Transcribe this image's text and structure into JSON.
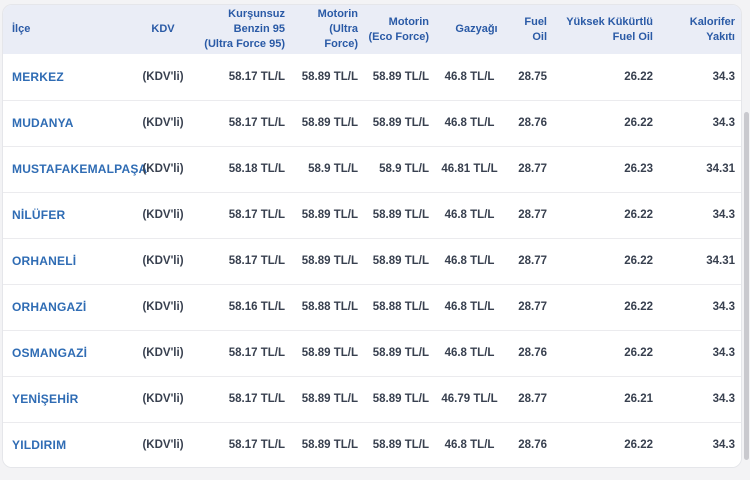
{
  "theme": {
    "page_background": "#f3f3f5",
    "card_background": "#ffffff",
    "header_background": "#eaedf6",
    "header_text_color": "#2a5aa6",
    "district_text_color": "#2f6cb4",
    "value_text_color": "#38404f",
    "row_divider_color": "#ebebee",
    "scrollbar_color": "#c9c9ce"
  },
  "chart_data": {
    "type": "table",
    "title": "",
    "columns": [
      {
        "key": "ilce",
        "label": "İlçe",
        "align": "left"
      },
      {
        "key": "kdv",
        "label": "KDV",
        "align": "center"
      },
      {
        "key": "benzin95",
        "label": "Kurşunsuz\nBenzin 95\n(Ultra Force 95)",
        "align": "right"
      },
      {
        "key": "motorin_ultra",
        "label": "Motorin\n(Ultra\nForce)",
        "align": "right"
      },
      {
        "key": "motorin_eco",
        "label": "Motorin\n(Eco Force)",
        "align": "right"
      },
      {
        "key": "gazyagi",
        "label": "Gazyağı",
        "align": "center"
      },
      {
        "key": "fuel_oil",
        "label": "Fuel\nOil",
        "align": "right"
      },
      {
        "key": "yuksek_fuel_oil",
        "label": "Yüksek Kükürtlü\nFuel Oil",
        "align": "right"
      },
      {
        "key": "kalorifer",
        "label": "Kalorifer\nYakıtı",
        "align": "right"
      }
    ],
    "rows": [
      {
        "ilce": "MERKEZ",
        "kdv": "(KDV'li)",
        "benzin95": "58.17 TL/L",
        "motorin_ultra": "58.89 TL/L",
        "motorin_eco": "58.89 TL/L",
        "gazyagi": "46.8 TL/L",
        "fuel_oil": "28.75",
        "yuksek_fuel_oil": "26.22",
        "kalorifer": "34.3"
      },
      {
        "ilce": "MUDANYA",
        "kdv": "(KDV'li)",
        "benzin95": "58.17 TL/L",
        "motorin_ultra": "58.89 TL/L",
        "motorin_eco": "58.89 TL/L",
        "gazyagi": "46.8 TL/L",
        "fuel_oil": "28.76",
        "yuksek_fuel_oil": "26.22",
        "kalorifer": "34.3"
      },
      {
        "ilce": "MUSTAFAKEMALPAŞA",
        "kdv": "(KDV'li)",
        "benzin95": "58.18 TL/L",
        "motorin_ultra": "58.9 TL/L",
        "motorin_eco": "58.9 TL/L",
        "gazyagi": "46.81 TL/L",
        "fuel_oil": "28.77",
        "yuksek_fuel_oil": "26.23",
        "kalorifer": "34.31"
      },
      {
        "ilce": "NİLÜFER",
        "kdv": "(KDV'li)",
        "benzin95": "58.17 TL/L",
        "motorin_ultra": "58.89 TL/L",
        "motorin_eco": "58.89 TL/L",
        "gazyagi": "46.8 TL/L",
        "fuel_oil": "28.77",
        "yuksek_fuel_oil": "26.22",
        "kalorifer": "34.3"
      },
      {
        "ilce": "ORHANELİ",
        "kdv": "(KDV'li)",
        "benzin95": "58.17 TL/L",
        "motorin_ultra": "58.89 TL/L",
        "motorin_eco": "58.89 TL/L",
        "gazyagi": "46.8 TL/L",
        "fuel_oil": "28.77",
        "yuksek_fuel_oil": "26.22",
        "kalorifer": "34.31"
      },
      {
        "ilce": "ORHANGAZİ",
        "kdv": "(KDV'li)",
        "benzin95": "58.16 TL/L",
        "motorin_ultra": "58.88 TL/L",
        "motorin_eco": "58.88 TL/L",
        "gazyagi": "46.8 TL/L",
        "fuel_oil": "28.77",
        "yuksek_fuel_oil": "26.22",
        "kalorifer": "34.3"
      },
      {
        "ilce": "OSMANGAZİ",
        "kdv": "(KDV'li)",
        "benzin95": "58.17 TL/L",
        "motorin_ultra": "58.89 TL/L",
        "motorin_eco": "58.89 TL/L",
        "gazyagi": "46.8 TL/L",
        "fuel_oil": "28.76",
        "yuksek_fuel_oil": "26.22",
        "kalorifer": "34.3"
      },
      {
        "ilce": "YENİŞEHİR",
        "kdv": "(KDV'li)",
        "benzin95": "58.17 TL/L",
        "motorin_ultra": "58.89 TL/L",
        "motorin_eco": "58.89 TL/L",
        "gazyagi": "46.79 TL/L",
        "fuel_oil": "28.77",
        "yuksek_fuel_oil": "26.21",
        "kalorifer": "34.3"
      },
      {
        "ilce": "YILDIRIM",
        "kdv": "(KDV'li)",
        "benzin95": "58.17 TL/L",
        "motorin_ultra": "58.89 TL/L",
        "motorin_eco": "58.89 TL/L",
        "gazyagi": "46.8 TL/L",
        "fuel_oil": "28.76",
        "yuksek_fuel_oil": "26.22",
        "kalorifer": "34.3"
      }
    ]
  }
}
